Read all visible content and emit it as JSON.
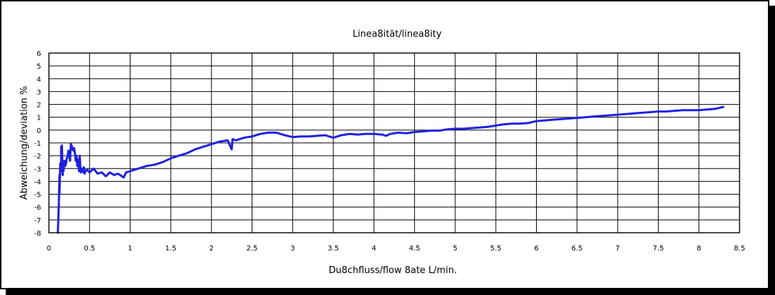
{
  "chart_data": {
    "type": "line",
    "title": "Linea8ität/linea8ity",
    "xlabel": "Du8chfluss/flow 8ate L/min.",
    "ylabel": "Abweichung/deviation %",
    "xlim": [
      0,
      8.5
    ],
    "ylim": [
      -8,
      6
    ],
    "x_ticks": [
      "0",
      "0.5",
      "1",
      "1.5",
      "2",
      "2.5",
      "3",
      "3.5",
      "4",
      "4.5",
      "5",
      "5.5",
      "6",
      "6.5",
      "7",
      "7.5",
      "8",
      "8.5"
    ],
    "y_ticks": [
      "6",
      "5",
      "4",
      "3",
      "2",
      "1",
      "0",
      "-1",
      "-2",
      "-3",
      "-4",
      "-5",
      "-6",
      "-7",
      "-8"
    ],
    "grid": true,
    "legend": "none",
    "series": [
      {
        "color": "#2020e0",
        "x": [
          0.11,
          0.12,
          0.12,
          0.13,
          0.13,
          0.14,
          0.14,
          0.15,
          0.15,
          0.16,
          0.16,
          0.17,
          0.17,
          0.18,
          0.19,
          0.2,
          0.21,
          0.22,
          0.23,
          0.24,
          0.25,
          0.26,
          0.27,
          0.28,
          0.29,
          0.3,
          0.31,
          0.32,
          0.33,
          0.34,
          0.35,
          0.36,
          0.37,
          0.38,
          0.39,
          0.4,
          0.41,
          0.42,
          0.43,
          0.44,
          0.45,
          0.47,
          0.5,
          0.55,
          0.6,
          0.65,
          0.7,
          0.75,
          0.8,
          0.85,
          0.9,
          0.92,
          0.95,
          1.0,
          1.05,
          1.1,
          1.2,
          1.3,
          1.4,
          1.5,
          1.6,
          1.7,
          1.8,
          1.9,
          2.0,
          2.1,
          2.2,
          2.25,
          2.26,
          2.3,
          2.4,
          2.5,
          2.6,
          2.7,
          2.8,
          2.9,
          3.0,
          3.1,
          3.2,
          3.3,
          3.4,
          3.45,
          3.5,
          3.6,
          3.7,
          3.8,
          3.9,
          4.0,
          4.1,
          4.15,
          4.2,
          4.3,
          4.4,
          4.5,
          4.6,
          4.7,
          4.8,
          4.9,
          5.0,
          5.1,
          5.2,
          5.3,
          5.4,
          5.5,
          5.6,
          5.7,
          5.8,
          5.9,
          6.0,
          6.1,
          6.2,
          6.3,
          6.4,
          6.5,
          6.6,
          6.7,
          6.8,
          6.9,
          7.0,
          7.1,
          7.2,
          7.3,
          7.4,
          7.5,
          7.6,
          7.7,
          7.8,
          7.9,
          8.0,
          8.1,
          8.2,
          8.3
        ],
        "y": [
          -8.0,
          -6.0,
          -6.2,
          -3.5,
          -5.0,
          -2.6,
          -3.4,
          -2.5,
          -1.3,
          -3.0,
          -1.2,
          -3.5,
          -2.5,
          -3.2,
          -2.4,
          -2.8,
          -2.6,
          -2.2,
          -2.0,
          -1.6,
          -2.0,
          -2.4,
          -1.1,
          -1.2,
          -1.5,
          -1.6,
          -1.4,
          -1.8,
          -2.4,
          -2.0,
          -2.8,
          -2.3,
          -3.2,
          -2.0,
          -3.3,
          -3.1,
          -3.0,
          -3.3,
          -2.9,
          -3.4,
          -3.2,
          -3.1,
          -3.3,
          -3.0,
          -3.4,
          -3.3,
          -3.6,
          -3.3,
          -3.5,
          -3.4,
          -3.6,
          -3.7,
          -3.3,
          -3.2,
          -3.1,
          -3.0,
          -2.8,
          -2.7,
          -2.5,
          -2.2,
          -2.0,
          -1.8,
          -1.5,
          -1.3,
          -1.1,
          -0.9,
          -0.8,
          -1.5,
          -0.7,
          -0.8,
          -0.6,
          -0.5,
          -0.3,
          -0.2,
          -0.2,
          -0.4,
          -0.55,
          -0.5,
          -0.5,
          -0.45,
          -0.4,
          -0.5,
          -0.6,
          -0.4,
          -0.3,
          -0.35,
          -0.3,
          -0.3,
          -0.35,
          -0.45,
          -0.3,
          -0.2,
          -0.25,
          -0.15,
          -0.1,
          -0.05,
          -0.05,
          0.05,
          0.1,
          0.1,
          0.15,
          0.2,
          0.25,
          0.35,
          0.45,
          0.5,
          0.5,
          0.55,
          0.7,
          0.75,
          0.8,
          0.85,
          0.9,
          0.95,
          1.0,
          1.05,
          1.1,
          1.15,
          1.2,
          1.25,
          1.3,
          1.35,
          1.4,
          1.45,
          1.45,
          1.5,
          1.55,
          1.55,
          1.55,
          1.6,
          1.65,
          1.8
        ]
      }
    ]
  }
}
